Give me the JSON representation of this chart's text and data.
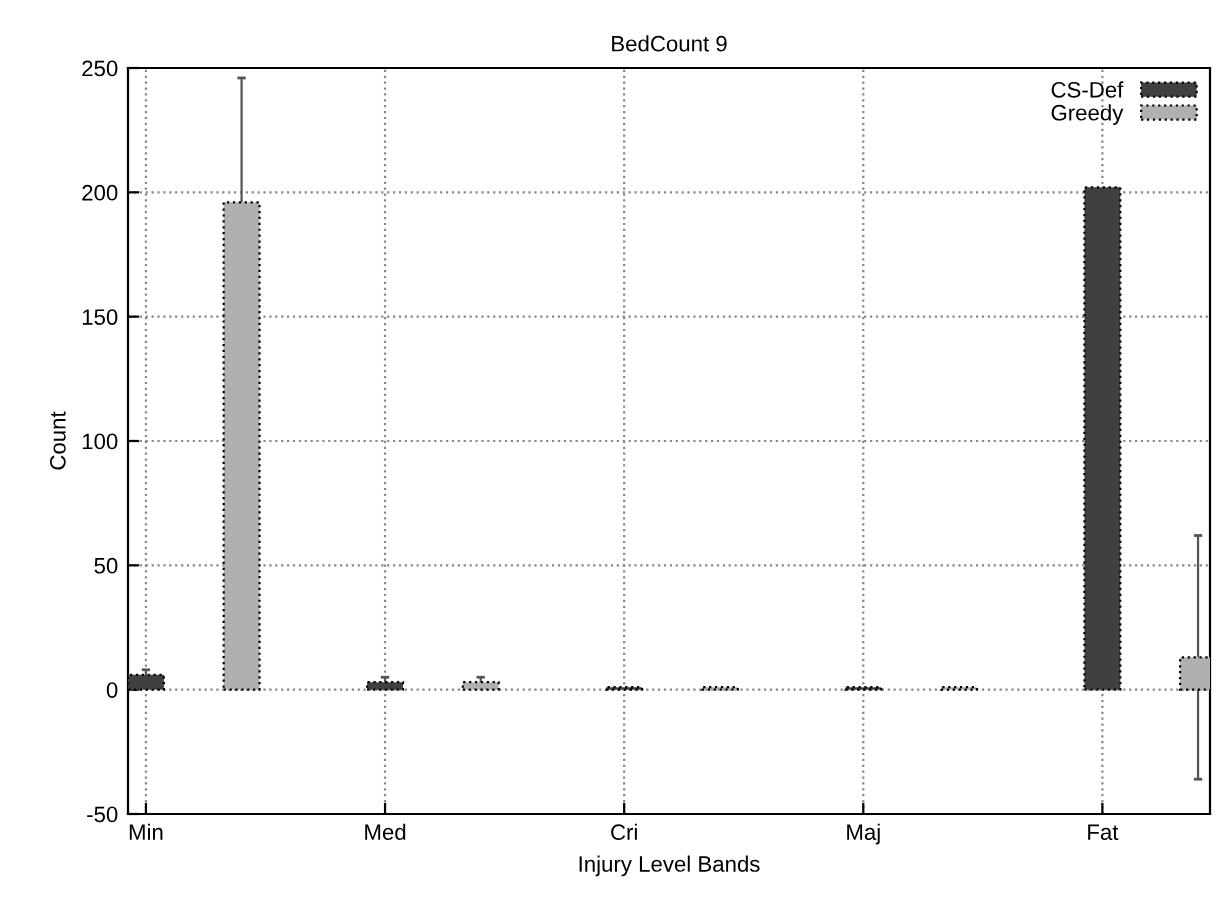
{
  "chart_data": {
    "type": "bar",
    "title": "BedCount 9",
    "xlabel": "Injury Level Bands",
    "ylabel": "Count",
    "categories": [
      "Min",
      "Med",
      "Cri",
      "Maj",
      "Fat"
    ],
    "series": [
      {
        "name": "CS-Def",
        "color": "#404040",
        "values": [
          6,
          3,
          1,
          1,
          202
        ],
        "errors": [
          2,
          2,
          null,
          null,
          null
        ]
      },
      {
        "name": "Greedy",
        "color": "#b0b0b0",
        "values": [
          196,
          3,
          1,
          1,
          13
        ],
        "errors": [
          50,
          2,
          null,
          null,
          49
        ]
      }
    ],
    "ylim": [
      -50,
      250
    ],
    "yticks": [
      -50,
      0,
      50,
      100,
      150,
      200,
      250
    ],
    "grid": true,
    "legend": "top right"
  }
}
